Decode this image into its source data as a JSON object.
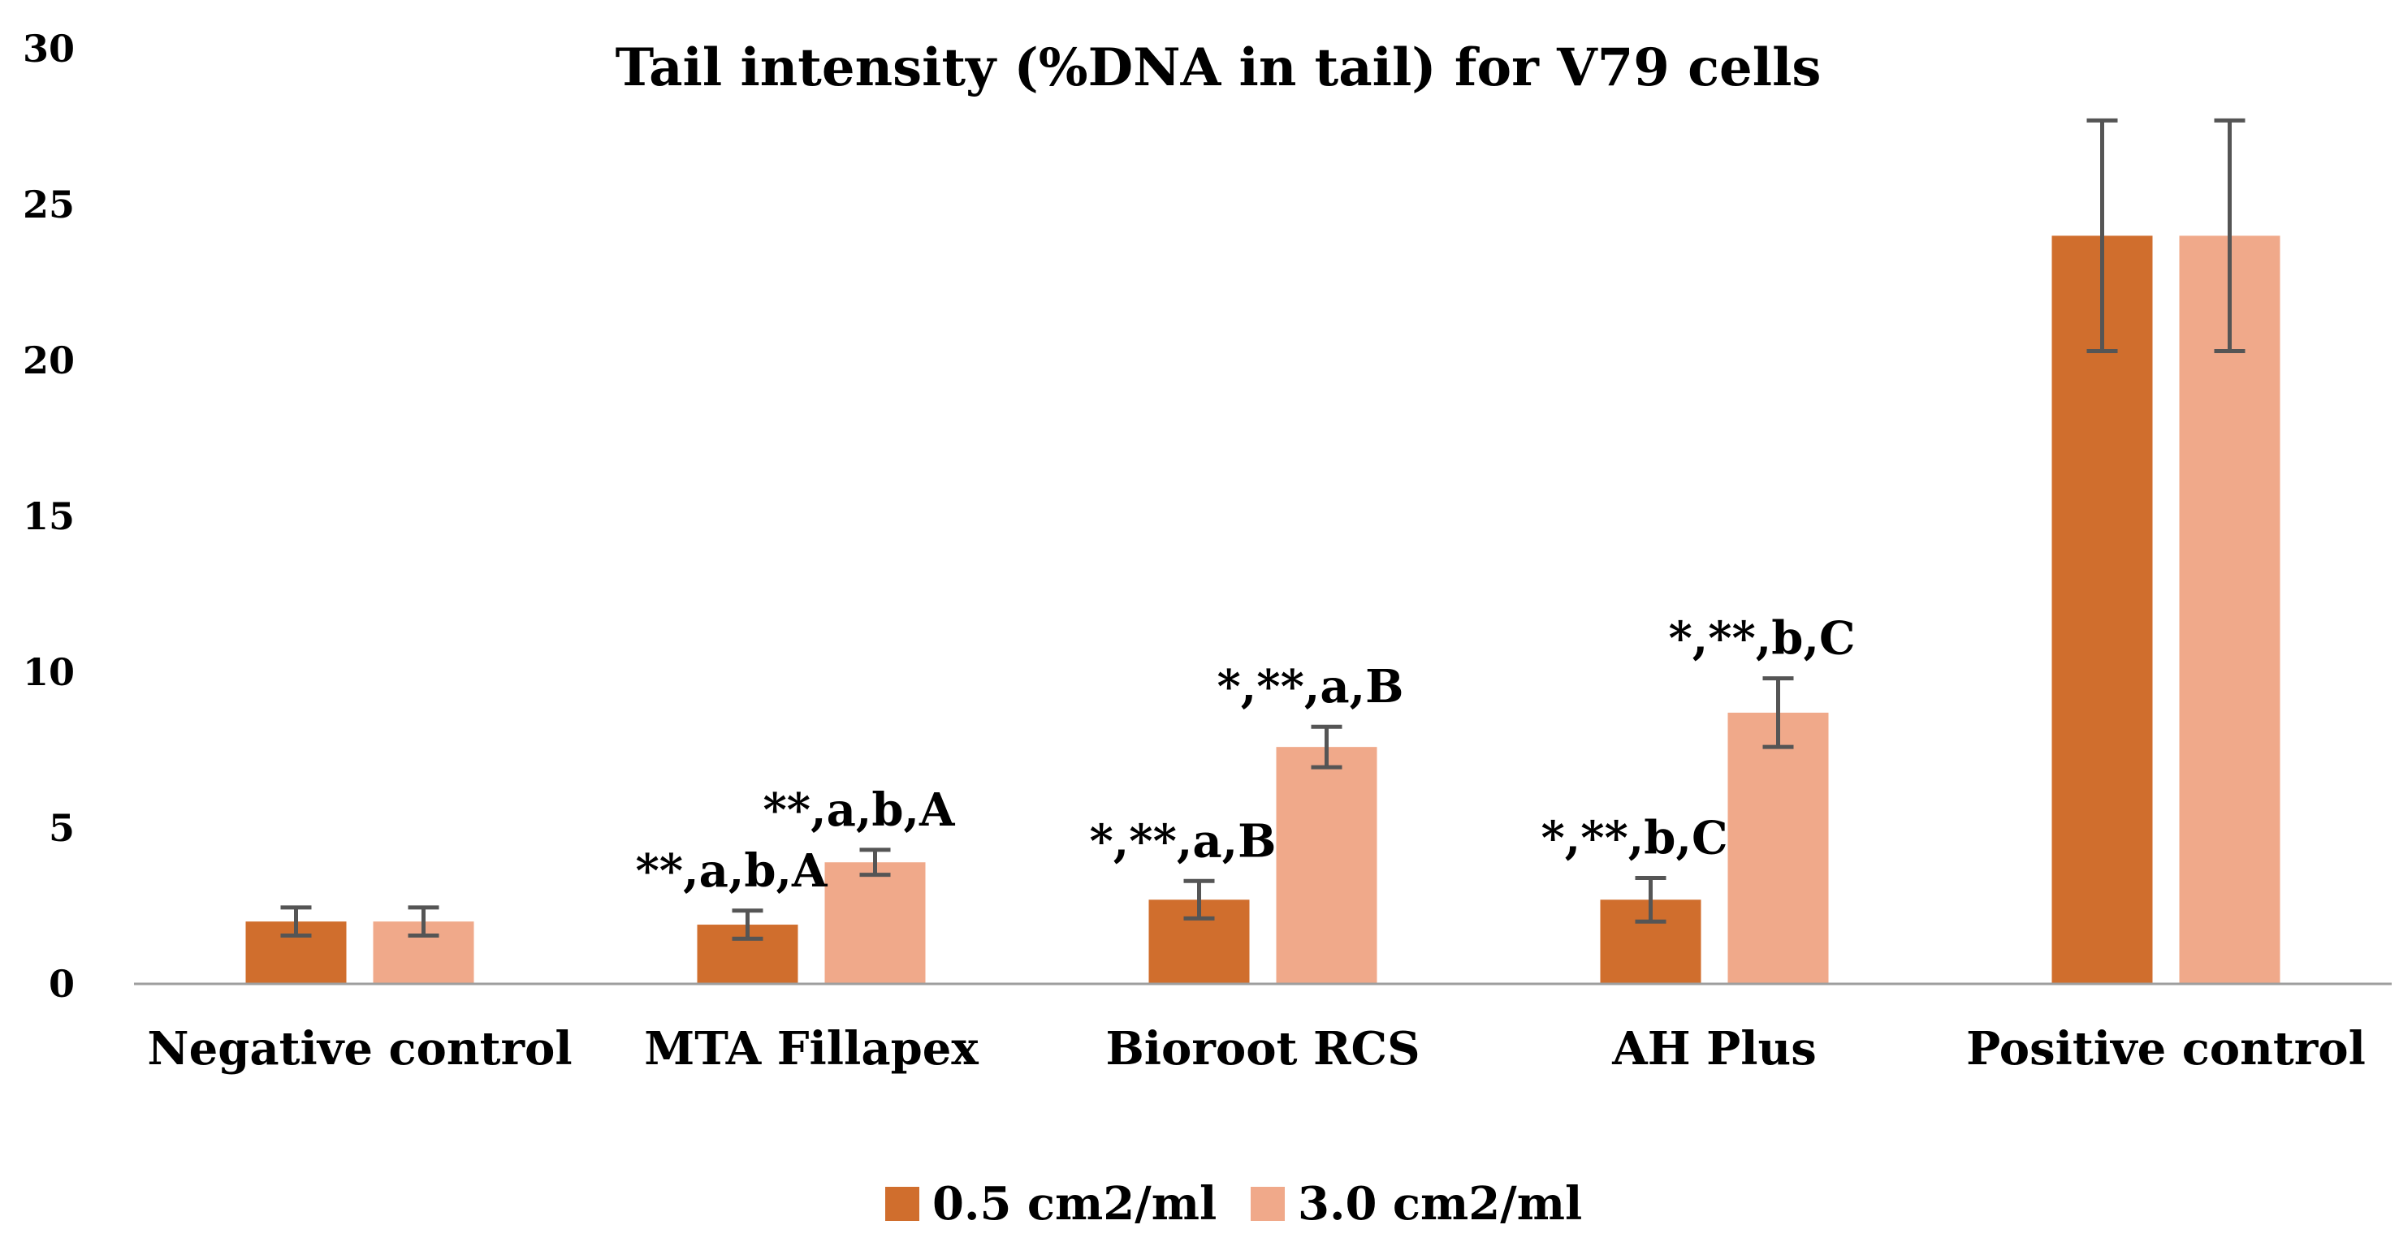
{
  "chart_data": {
    "type": "bar",
    "title": "Tail intensity (%DNA in tail) for V79 cells",
    "xlabel": "",
    "ylabel": "",
    "ylim": [
      0,
      30
    ],
    "yticks": [
      "0",
      "5",
      "10",
      "15",
      "20",
      "25",
      "30"
    ],
    "ytick_values": [
      0,
      5,
      10,
      15,
      20,
      25,
      30
    ],
    "grid": false,
    "legend_position": "bottom",
    "categories": [
      "Negative control",
      "MTA Fillapex",
      "Bioroot RCS",
      "AH Plus",
      "Positive control"
    ],
    "series": [
      {
        "name": "0.5 cm2/ml",
        "color": "#D06E2D",
        "values": [
          2.0,
          1.9,
          2.7,
          2.7,
          24.0
        ],
        "errors": [
          0.45,
          0.45,
          0.6,
          0.7,
          3.7
        ],
        "annotations": [
          "",
          "**,a,b,A",
          "*,**,a,B",
          "*,**,b,C",
          ""
        ]
      },
      {
        "name": "3.0 cm2/ml",
        "color": "#F0A98A",
        "values": [
          2.0,
          3.9,
          7.6,
          8.7,
          24.0
        ],
        "errors": [
          0.45,
          0.4,
          0.65,
          1.1,
          3.7
        ],
        "annotations": [
          "",
          "**,a,b,A",
          "*,**,a,B",
          "*,**,b,C",
          ""
        ]
      }
    ],
    "errorbar_color": "#555555",
    "axis_color": "#9E9E9E"
  }
}
